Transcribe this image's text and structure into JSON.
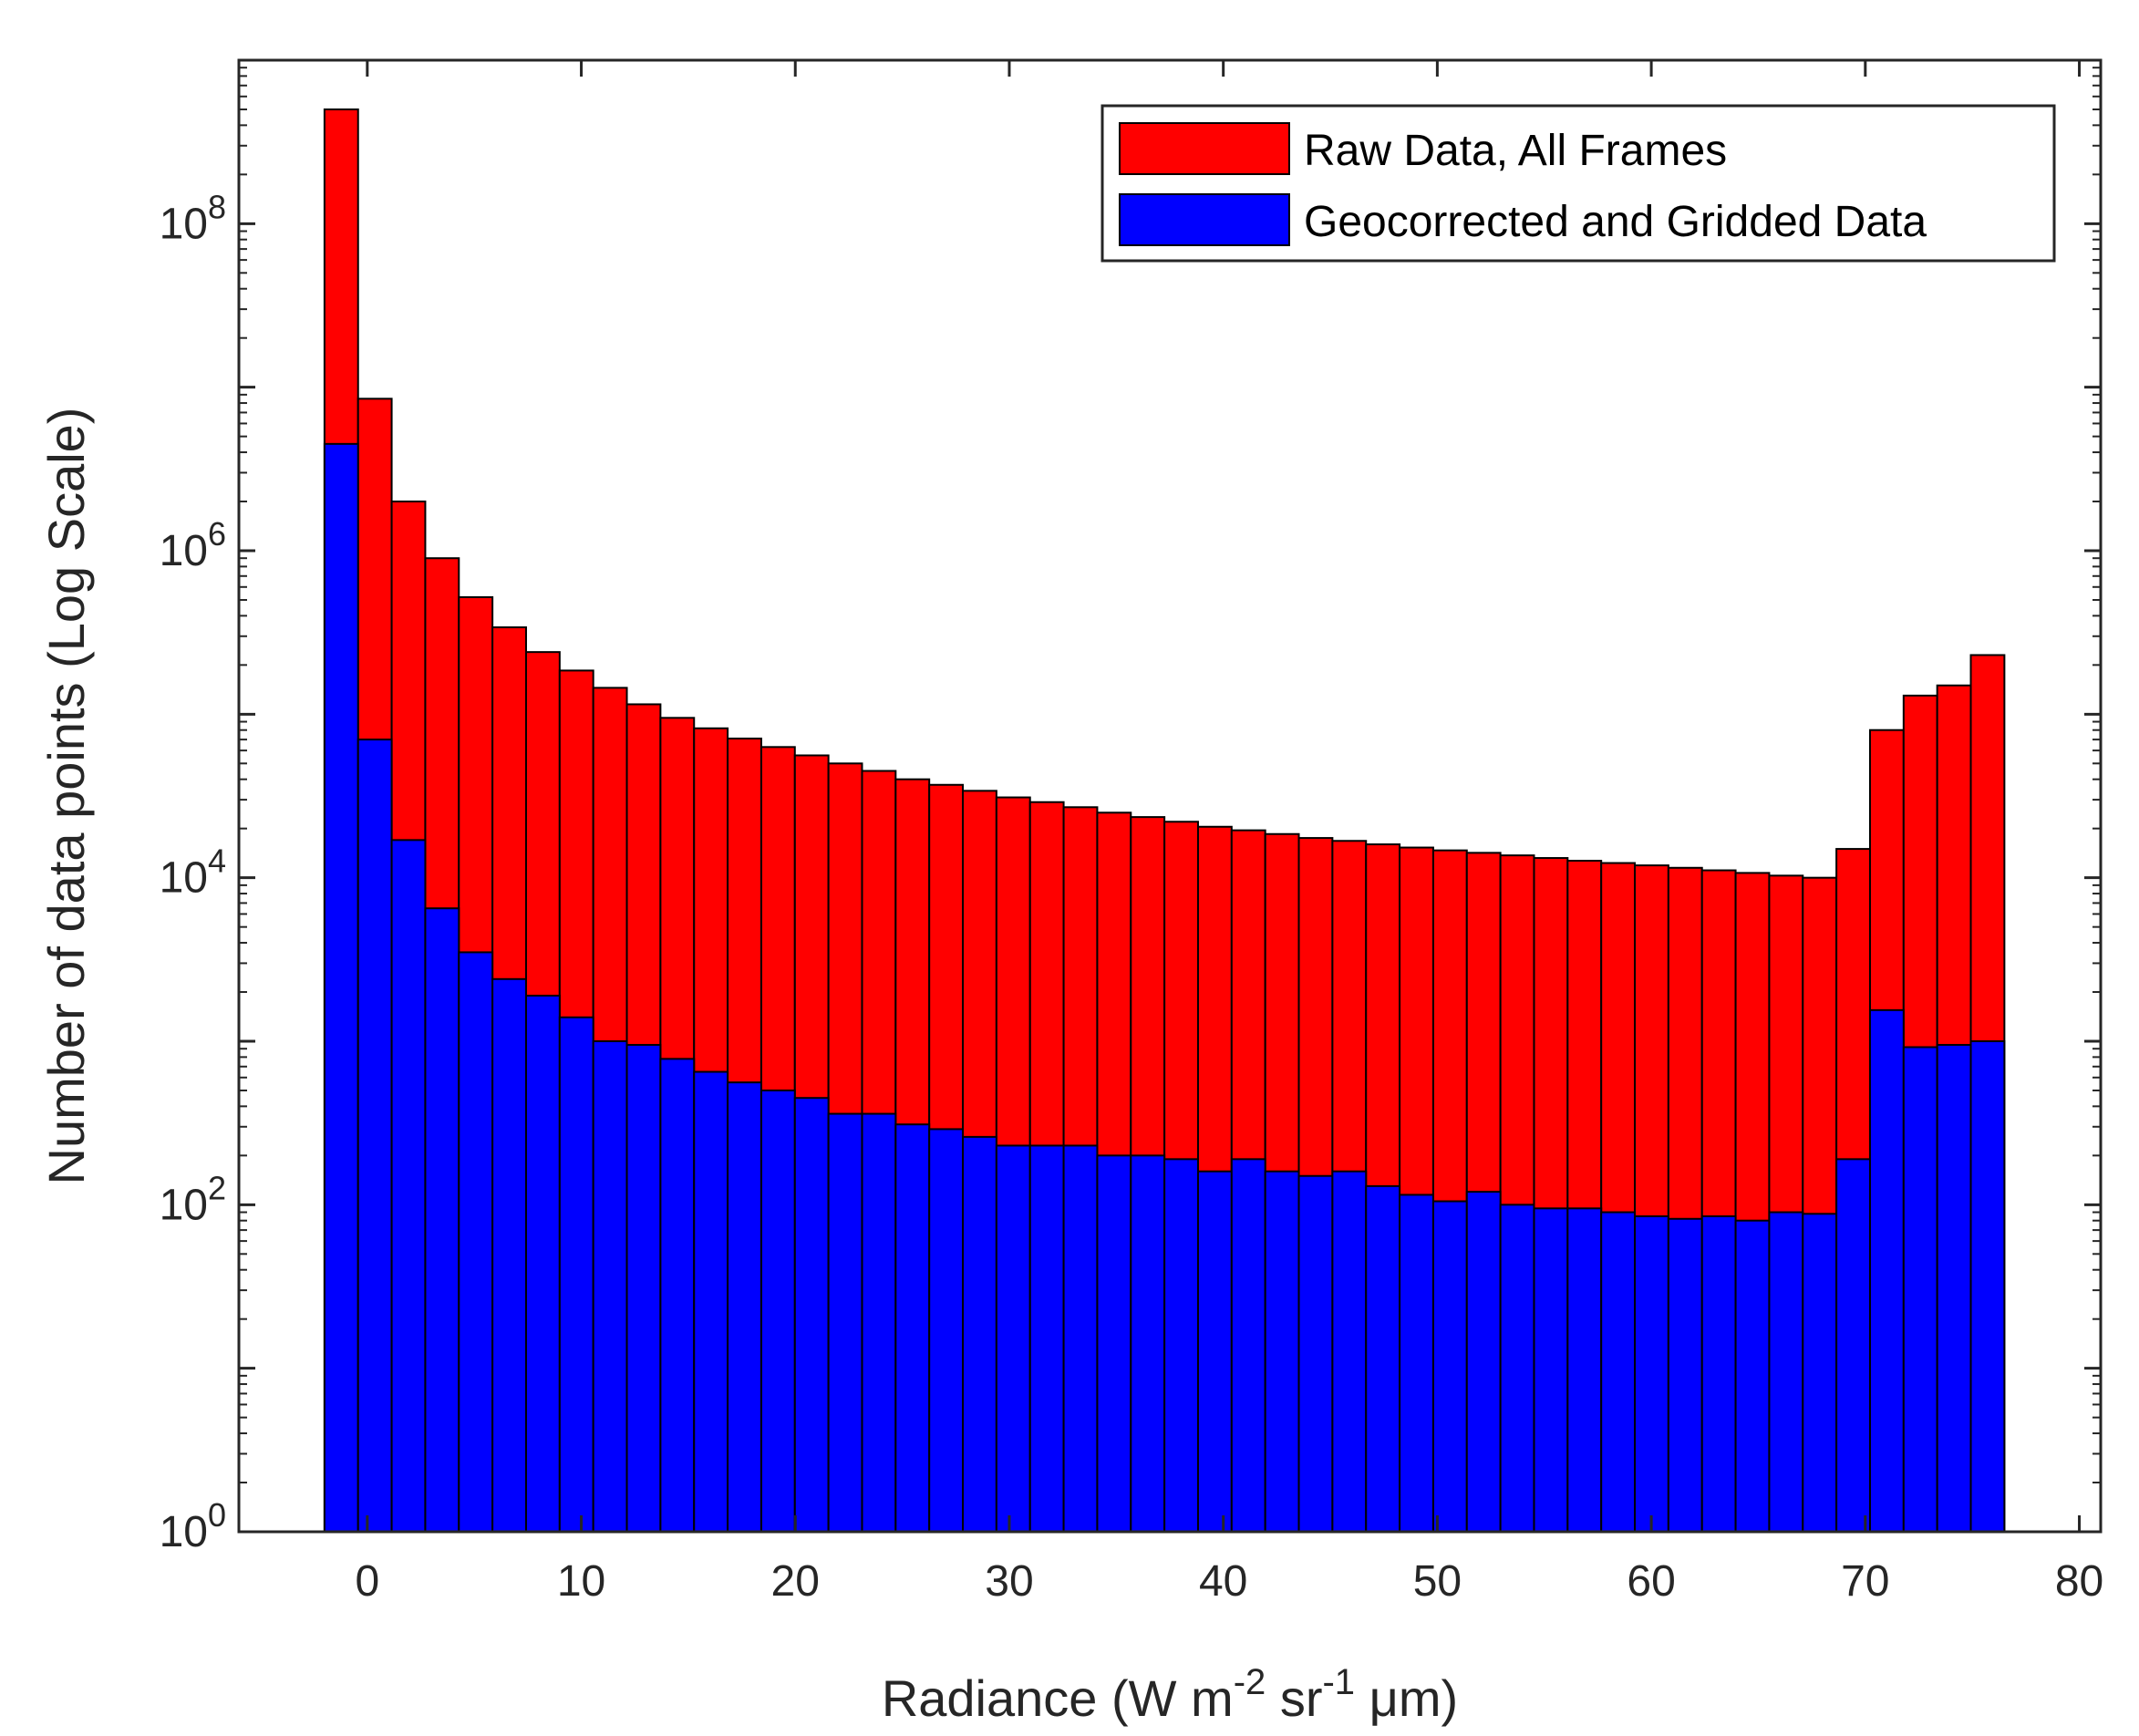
{
  "chart_data": {
    "type": "bar",
    "stacking": "overlaid",
    "xlabel": {
      "prefix": "Radiance (W m",
      "sup1": "-2",
      "mid": " sr",
      "sup2": "-1",
      "suffix": " μm)"
    },
    "ylabel": "Number of data points (Log Scale)",
    "y_scale": "log",
    "xlim": [
      -6,
      81
    ],
    "ylim": [
      1,
      1000000000
    ],
    "x_ticks": [
      0,
      10,
      20,
      30,
      40,
      50,
      60,
      70,
      80
    ],
    "y_ticks": [
      {
        "base": "10",
        "exp": "0",
        "value": 1
      },
      {
        "base": "10",
        "exp": "2",
        "value": 100
      },
      {
        "base": "10",
        "exp": "4",
        "value": 10000
      },
      {
        "base": "10",
        "exp": "6",
        "value": 1000000
      },
      {
        "base": "10",
        "exp": "8",
        "value": 100000000
      }
    ],
    "bin_width": 1.57,
    "bin_start": -2,
    "grid": false,
    "legend_position": "top-right",
    "series": [
      {
        "name": "Raw Data, All Frames",
        "color": "#ff0000",
        "values": [
          500000000,
          8500000,
          2000000,
          900000,
          520000,
          340000,
          240000,
          185000,
          145000,
          115000,
          95000,
          82000,
          71000,
          63000,
          56000,
          50000,
          45000,
          40000,
          37000,
          34000,
          31000,
          29000,
          27000,
          25000,
          23500,
          22000,
          20500,
          19500,
          18500,
          17500,
          16800,
          16000,
          15300,
          14700,
          14200,
          13700,
          13200,
          12700,
          12300,
          11900,
          11500,
          11100,
          10700,
          10300,
          10000,
          15000,
          80000,
          130000,
          150000,
          230000
        ]
      },
      {
        "name": "Geocorrected and Gridded Data",
        "color": "#0000ff",
        "values": [
          4500000,
          70000,
          17000,
          6500,
          3500,
          2400,
          1900,
          1400,
          1000,
          950,
          780,
          650,
          560,
          500,
          450,
          360,
          360,
          310,
          290,
          260,
          230,
          230,
          230,
          200,
          200,
          190,
          160,
          190,
          160,
          150,
          160,
          130,
          115,
          105,
          120,
          100,
          95,
          95,
          90,
          85,
          82,
          85,
          80,
          90,
          88,
          190,
          1550,
          920,
          950,
          1000
        ]
      }
    ]
  }
}
